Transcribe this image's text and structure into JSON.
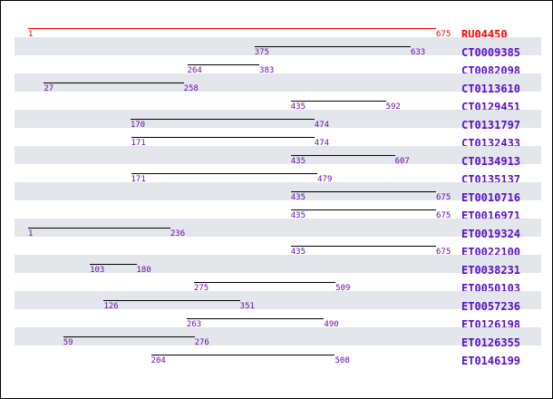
{
  "scale": {
    "min": 1,
    "max": 675
  },
  "colors": {
    "reference": "#ff0000",
    "accession": "#5b10c8",
    "label": "#6a0dad",
    "shade": "#e3e6ea"
  },
  "tracks": [
    {
      "id": "RU04450",
      "start": 1,
      "end": 675,
      "start_label": "1",
      "end_label": "675",
      "reference": true
    },
    {
      "id": "CT0009385",
      "start": 375,
      "end": 633,
      "start_label": "375",
      "end_label": "633"
    },
    {
      "id": "CT0082098",
      "start": 264,
      "end": 383,
      "start_label": "264",
      "end_label": "383"
    },
    {
      "id": "CT0113610",
      "start": 27,
      "end": 258,
      "start_label": "27",
      "end_label": "258"
    },
    {
      "id": "CT0129451",
      "start": 435,
      "end": 592,
      "start_label": "435",
      "end_label": "592"
    },
    {
      "id": "CT0131797",
      "start": 170,
      "end": 474,
      "start_label": "170",
      "end_label": "474"
    },
    {
      "id": "CT0132433",
      "start": 171,
      "end": 474,
      "start_label": "171",
      "end_label": "474"
    },
    {
      "id": "CT0134913",
      "start": 435,
      "end": 607,
      "start_label": "435",
      "end_label": "607"
    },
    {
      "id": "CT0135137",
      "start": 171,
      "end": 479,
      "start_label": "171",
      "end_label": "479"
    },
    {
      "id": "ET0010716",
      "start": 435,
      "end": 675,
      "start_label": "435",
      "end_label": "675"
    },
    {
      "id": "ET0016971",
      "start": 435,
      "end": 675,
      "start_label": "435",
      "end_label": "675"
    },
    {
      "id": "ET0019324",
      "start": 1,
      "end": 236,
      "start_label": "1",
      "end_label": "236"
    },
    {
      "id": "ET0022100",
      "start": 435,
      "end": 675,
      "start_label": "435",
      "end_label": "675"
    },
    {
      "id": "ET0038231",
      "start": 103,
      "end": 180,
      "start_label": "103",
      "end_label": "180"
    },
    {
      "id": "ET0050103",
      "start": 275,
      "end": 509,
      "start_label": "275",
      "end_label": "509"
    },
    {
      "id": "ET0057236",
      "start": 126,
      "end": 351,
      "start_label": "126",
      "end_label": "351"
    },
    {
      "id": "ET0126198",
      "start": 263,
      "end": 490,
      "start_label": "263",
      "end_label": "490"
    },
    {
      "id": "ET0126355",
      "start": 59,
      "end": 276,
      "start_label": "59",
      "end_label": "276"
    },
    {
      "id": "ET0146199",
      "start": 204,
      "end": 508,
      "start_label": "204",
      "end_label": "508"
    }
  ]
}
